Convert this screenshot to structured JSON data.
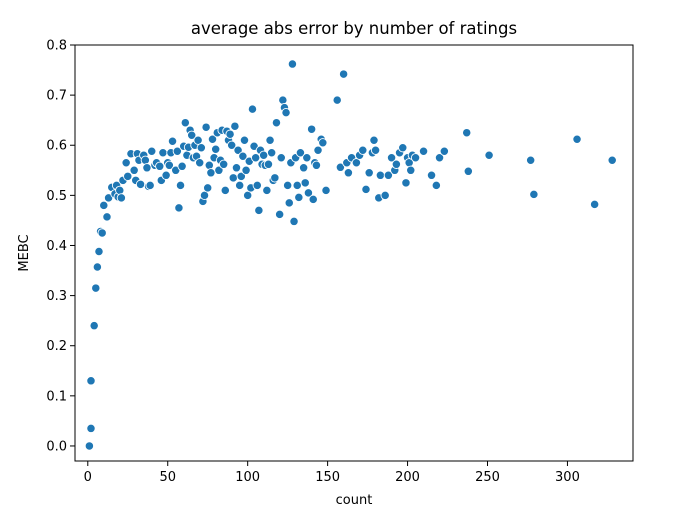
{
  "chart_data": {
    "type": "scatter",
    "title": "average abs error by number of ratings",
    "xlabel": "count",
    "ylabel": "MEBC",
    "xlim": [
      -8,
      341
    ],
    "ylim": [
      -0.03,
      0.8
    ],
    "xticks": [
      0,
      50,
      100,
      150,
      200,
      250,
      300
    ],
    "yticks": [
      0.0,
      0.1,
      0.2,
      0.3,
      0.4,
      0.5,
      0.6,
      0.7,
      0.8
    ],
    "xtick_labels": [
      "0",
      "50",
      "100",
      "150",
      "200",
      "250",
      "300"
    ],
    "ytick_labels": [
      "0.0",
      "0.1",
      "0.2",
      "0.3",
      "0.4",
      "0.5",
      "0.6",
      "0.7",
      "0.8"
    ],
    "grid": false,
    "legend": "none",
    "marker_color": "#1f77b4",
    "marker_edge_color": "#ffffff",
    "series": [
      {
        "points": [
          [
            1,
            0.0
          ],
          [
            2,
            0.035
          ],
          [
            2,
            0.13
          ],
          [
            4,
            0.24
          ],
          [
            5,
            0.315
          ],
          [
            6,
            0.357
          ],
          [
            7,
            0.388
          ],
          [
            8,
            0.428
          ],
          [
            9,
            0.425
          ],
          [
            10,
            0.48
          ],
          [
            12,
            0.457
          ],
          [
            13,
            0.495
          ],
          [
            15,
            0.516
          ],
          [
            17,
            0.503
          ],
          [
            18,
            0.52
          ],
          [
            19,
            0.497
          ],
          [
            20,
            0.51
          ],
          [
            21,
            0.495
          ],
          [
            22,
            0.53
          ],
          [
            24,
            0.565
          ],
          [
            25,
            0.538
          ],
          [
            27,
            0.583
          ],
          [
            29,
            0.55
          ],
          [
            30,
            0.53
          ],
          [
            31,
            0.583
          ],
          [
            32,
            0.57
          ],
          [
            33,
            0.522
          ],
          [
            35,
            0.58
          ],
          [
            36,
            0.57
          ],
          [
            37,
            0.555
          ],
          [
            38,
            0.518
          ],
          [
            39,
            0.52
          ],
          [
            40,
            0.588
          ],
          [
            42,
            0.56
          ],
          [
            43,
            0.565
          ],
          [
            45,
            0.558
          ],
          [
            46,
            0.53
          ],
          [
            47,
            0.585
          ],
          [
            49,
            0.54
          ],
          [
            50,
            0.565
          ],
          [
            51,
            0.56
          ],
          [
            52,
            0.585
          ],
          [
            53,
            0.608
          ],
          [
            55,
            0.55
          ],
          [
            56,
            0.588
          ],
          [
            57,
            0.475
          ],
          [
            58,
            0.52
          ],
          [
            59,
            0.558
          ],
          [
            60,
            0.598
          ],
          [
            61,
            0.645
          ],
          [
            62,
            0.58
          ],
          [
            63,
            0.596
          ],
          [
            64,
            0.63
          ],
          [
            65,
            0.62
          ],
          [
            66,
            0.575
          ],
          [
            67,
            0.6
          ],
          [
            68,
            0.578
          ],
          [
            69,
            0.61
          ],
          [
            70,
            0.565
          ],
          [
            71,
            0.595
          ],
          [
            72,
            0.488
          ],
          [
            73,
            0.5
          ],
          [
            74,
            0.636
          ],
          [
            75,
            0.515
          ],
          [
            76,
            0.56
          ],
          [
            77,
            0.545
          ],
          [
            78,
            0.612
          ],
          [
            79,
            0.575
          ],
          [
            80,
            0.592
          ],
          [
            81,
            0.625
          ],
          [
            82,
            0.55
          ],
          [
            83,
            0.57
          ],
          [
            84,
            0.63
          ],
          [
            85,
            0.562
          ],
          [
            86,
            0.51
          ],
          [
            87,
            0.628
          ],
          [
            88,
            0.61
          ],
          [
            89,
            0.622
          ],
          [
            90,
            0.6
          ],
          [
            91,
            0.535
          ],
          [
            92,
            0.638
          ],
          [
            93,
            0.555
          ],
          [
            94,
            0.59
          ],
          [
            95,
            0.52
          ],
          [
            96,
            0.538
          ],
          [
            97,
            0.578
          ],
          [
            98,
            0.61
          ],
          [
            99,
            0.55
          ],
          [
            100,
            0.5
          ],
          [
            101,
            0.568
          ],
          [
            102,
            0.515
          ],
          [
            103,
            0.672
          ],
          [
            104,
            0.598
          ],
          [
            105,
            0.575
          ],
          [
            106,
            0.52
          ],
          [
            107,
            0.47
          ],
          [
            108,
            0.59
          ],
          [
            109,
            0.562
          ],
          [
            110,
            0.58
          ],
          [
            111,
            0.56
          ],
          [
            112,
            0.51
          ],
          [
            113,
            0.562
          ],
          [
            114,
            0.61
          ],
          [
            115,
            0.585
          ],
          [
            116,
            0.53
          ],
          [
            117,
            0.535
          ],
          [
            118,
            0.645
          ],
          [
            120,
            0.462
          ],
          [
            121,
            0.575
          ],
          [
            122,
            0.69
          ],
          [
            123,
            0.675
          ],
          [
            124,
            0.665
          ],
          [
            125,
            0.52
          ],
          [
            126,
            0.485
          ],
          [
            127,
            0.565
          ],
          [
            128,
            0.762
          ],
          [
            129,
            0.448
          ],
          [
            130,
            0.575
          ],
          [
            131,
            0.52
          ],
          [
            132,
            0.496
          ],
          [
            133,
            0.585
          ],
          [
            135,
            0.555
          ],
          [
            136,
            0.525
          ],
          [
            137,
            0.575
          ],
          [
            138,
            0.505
          ],
          [
            140,
            0.632
          ],
          [
            141,
            0.492
          ],
          [
            142,
            0.565
          ],
          [
            143,
            0.56
          ],
          [
            144,
            0.59
          ],
          [
            146,
            0.612
          ],
          [
            147,
            0.605
          ],
          [
            149,
            0.51
          ],
          [
            156,
            0.69
          ],
          [
            158,
            0.556
          ],
          [
            160,
            0.742
          ],
          [
            162,
            0.565
          ],
          [
            163,
            0.545
          ],
          [
            165,
            0.575
          ],
          [
            168,
            0.565
          ],
          [
            170,
            0.58
          ],
          [
            172,
            0.59
          ],
          [
            174,
            0.512
          ],
          [
            176,
            0.545
          ],
          [
            178,
            0.585
          ],
          [
            179,
            0.61
          ],
          [
            180,
            0.59
          ],
          [
            182,
            0.495
          ],
          [
            183,
            0.54
          ],
          [
            186,
            0.5
          ],
          [
            188,
            0.54
          ],
          [
            190,
            0.575
          ],
          [
            192,
            0.55
          ],
          [
            193,
            0.562
          ],
          [
            195,
            0.585
          ],
          [
            197,
            0.595
          ],
          [
            199,
            0.525
          ],
          [
            200,
            0.575
          ],
          [
            201,
            0.565
          ],
          [
            202,
            0.55
          ],
          [
            203,
            0.58
          ],
          [
            205,
            0.575
          ],
          [
            210,
            0.588
          ],
          [
            215,
            0.54
          ],
          [
            218,
            0.52
          ],
          [
            220,
            0.575
          ],
          [
            223,
            0.588
          ],
          [
            237,
            0.625
          ],
          [
            238,
            0.548
          ],
          [
            251,
            0.58
          ],
          [
            277,
            0.57
          ],
          [
            279,
            0.502
          ],
          [
            306,
            0.612
          ],
          [
            317,
            0.482
          ],
          [
            328,
            0.57
          ]
        ]
      }
    ]
  }
}
